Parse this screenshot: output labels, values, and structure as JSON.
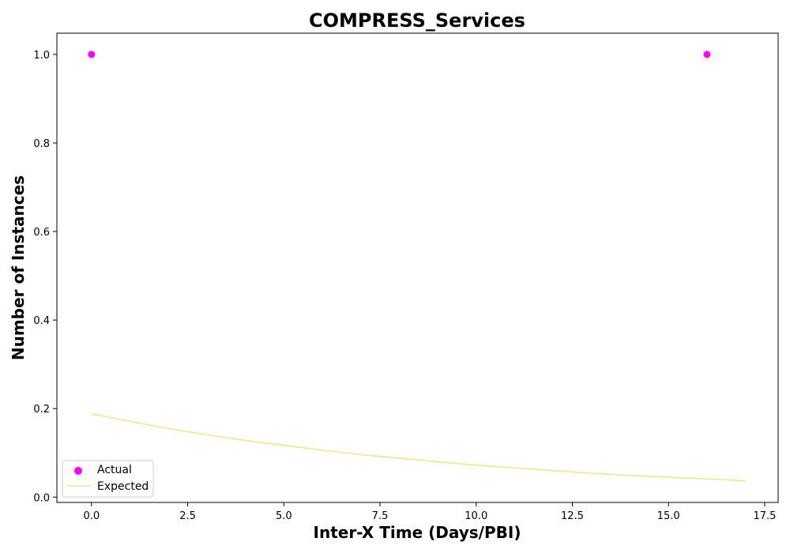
{
  "chart_data": {
    "type": "scatter",
    "title": "COMPRESS_Services",
    "xlabel": "Inter-X Time (Days/PBI)",
    "ylabel": "Number of Instances",
    "xlim": [
      -0.9,
      17.85
    ],
    "ylim": [
      -0.012,
      1.048
    ],
    "xticks": [
      0.0,
      2.5,
      5.0,
      7.5,
      10.0,
      12.5,
      15.0,
      17.5
    ],
    "xtick_labels": [
      "0.0",
      "2.5",
      "5.0",
      "7.5",
      "10.0",
      "12.5",
      "15.0",
      "17.5"
    ],
    "yticks": [
      0.0,
      0.2,
      0.4,
      0.6,
      0.8,
      1.0
    ],
    "ytick_labels": [
      "0.0",
      "0.2",
      "0.4",
      "0.6",
      "0.8",
      "1.0"
    ],
    "grid": false,
    "legend_position": "lower-left",
    "series": [
      {
        "name": "Actual",
        "kind": "scatter",
        "color": "#ff00ff",
        "x": [
          0,
          16
        ],
        "y": [
          1.0,
          1.0
        ]
      },
      {
        "name": "Expected",
        "kind": "line",
        "color": "#f0e68c",
        "x": [
          0,
          1,
          2,
          3,
          4,
          5,
          6,
          7,
          8,
          9,
          10,
          11,
          12,
          13,
          14,
          15,
          16,
          17
        ],
        "y": [
          0.188,
          0.171,
          0.155,
          0.141,
          0.128,
          0.117,
          0.106,
          0.096,
          0.088,
          0.08,
          0.072,
          0.066,
          0.06,
          0.054,
          0.049,
          0.045,
          0.041,
          0.037
        ]
      }
    ]
  }
}
